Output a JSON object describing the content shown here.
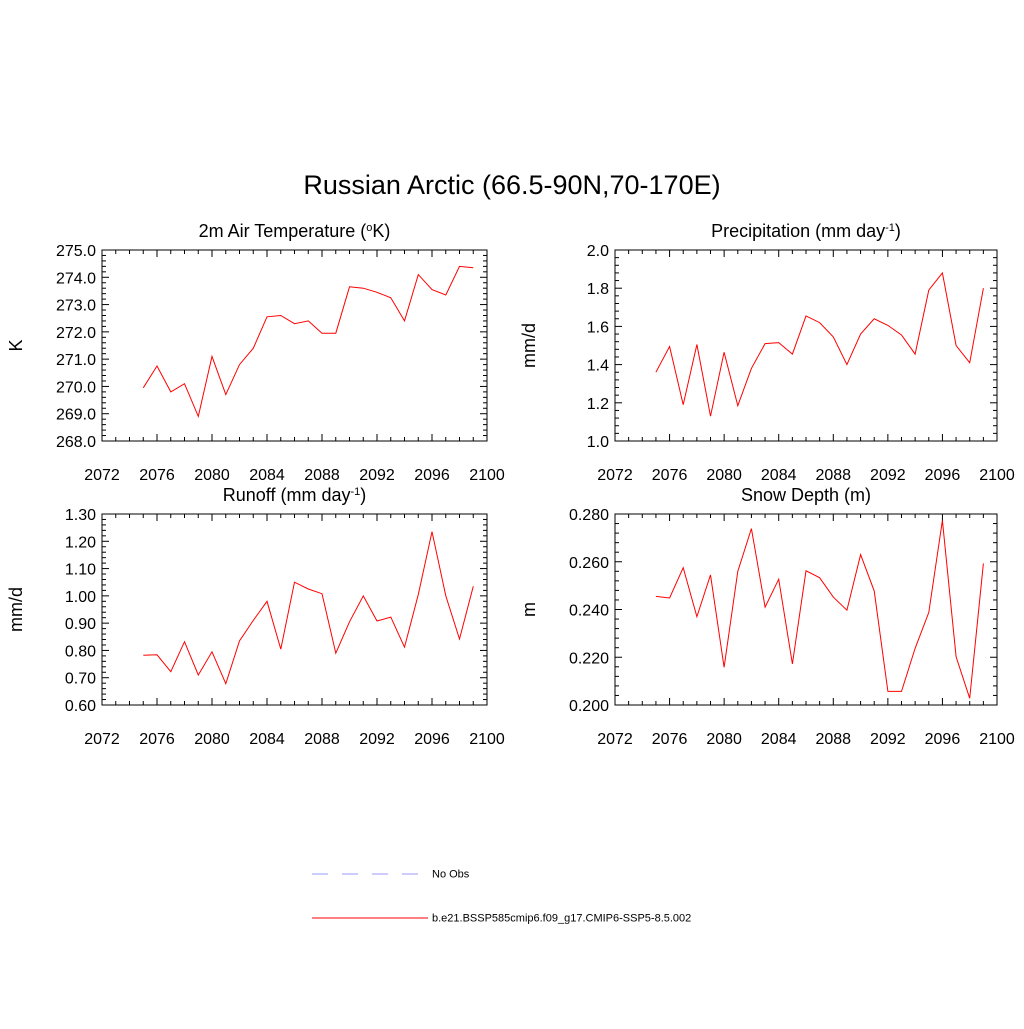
{
  "page": {
    "title": "Russian Arctic (66.5-90N,70-170E)"
  },
  "legend": {
    "items": [
      {
        "label": "No Obs",
        "color": "#9999ff",
        "dash": true
      },
      {
        "label": "b.e21.BSSP585cmip6.f09_g17.CMIP6-SSP5-8.5.002",
        "color": "#ff0000",
        "dash": false
      }
    ]
  },
  "chart_data": [
    {
      "type": "line",
      "title": "2m Air Temperature (°K)",
      "title_main": "2m Air Temperature (",
      "title_sup_prefix": "o",
      "title_after_sup": "K)",
      "ylabel": "K",
      "xlim": [
        2072,
        2100
      ],
      "ylim": [
        268,
        275
      ],
      "xticks": [
        2072,
        2076,
        2080,
        2084,
        2088,
        2092,
        2096,
        2100
      ],
      "yticks": [
        268,
        269,
        270,
        271,
        272,
        273,
        274,
        275
      ],
      "ytick_labels": [
        "268.0",
        "269.0",
        "270.0",
        "271.0",
        "272.0",
        "273.0",
        "274.0",
        "275.0"
      ],
      "grid": false,
      "series": [
        {
          "color": "#ff0000",
          "x": [
            2075,
            2076,
            2077,
            2078,
            2079,
            2080,
            2081,
            2082,
            2083,
            2084,
            2085,
            2086,
            2087,
            2088,
            2089,
            2090,
            2091,
            2092,
            2093,
            2094,
            2095,
            2096,
            2097,
            2098,
            2099
          ],
          "values": [
            269.95,
            270.75,
            269.8,
            270.1,
            268.9,
            271.1,
            269.7,
            270.8,
            271.4,
            272.55,
            272.6,
            272.3,
            272.4,
            271.95,
            271.95,
            273.65,
            273.6,
            273.45,
            273.25,
            272.4,
            274.1,
            273.55,
            273.35,
            274.4,
            274.35
          ]
        }
      ]
    },
    {
      "type": "line",
      "title": "Precipitation (mm day-1)",
      "title_main": "Precipitation (mm day",
      "title_sup_prefix": "-1",
      "title_after_sup": ")",
      "ylabel": "mm/d",
      "xlim": [
        2072,
        2100
      ],
      "ylim": [
        1.0,
        2.0
      ],
      "xticks": [
        2072,
        2076,
        2080,
        2084,
        2088,
        2092,
        2096,
        2100
      ],
      "yticks": [
        1.0,
        1.2,
        1.4,
        1.6,
        1.8,
        2.0
      ],
      "ytick_labels": [
        "1.0",
        "1.2",
        "1.4",
        "1.6",
        "1.8",
        "2.0"
      ],
      "grid": false,
      "series": [
        {
          "color": "#ff0000",
          "x": [
            2075,
            2076,
            2077,
            2078,
            2079,
            2080,
            2081,
            2082,
            2083,
            2084,
            2085,
            2086,
            2087,
            2088,
            2089,
            2090,
            2091,
            2092,
            2093,
            2094,
            2095,
            2096,
            2097,
            2098,
            2099
          ],
          "values": [
            1.36,
            1.495,
            1.19,
            1.505,
            1.13,
            1.465,
            1.185,
            1.38,
            1.51,
            1.515,
            1.455,
            1.655,
            1.62,
            1.545,
            1.4,
            1.56,
            1.64,
            1.605,
            1.555,
            1.455,
            1.79,
            1.88,
            1.5,
            1.41,
            1.8
          ]
        }
      ]
    },
    {
      "type": "line",
      "title": "Runoff (mm day-1)",
      "title_main": "Runoff (mm day",
      "title_sup_prefix": "-1",
      "title_after_sup": ")",
      "ylabel": "mm/d",
      "xlim": [
        2072,
        2100
      ],
      "ylim": [
        0.6,
        1.3
      ],
      "xticks": [
        2072,
        2076,
        2080,
        2084,
        2088,
        2092,
        2096,
        2100
      ],
      "yticks": [
        0.6,
        0.7,
        0.8,
        0.9,
        1.0,
        1.1,
        1.2,
        1.3
      ],
      "ytick_labels": [
        "0.60",
        "0.70",
        "0.80",
        "0.90",
        "1.00",
        "1.10",
        "1.20",
        "1.30"
      ],
      "grid": false,
      "series": [
        {
          "color": "#ff0000",
          "x": [
            2075,
            2076,
            2077,
            2078,
            2079,
            2080,
            2081,
            2082,
            2083,
            2084,
            2085,
            2086,
            2087,
            2088,
            2089,
            2090,
            2091,
            2092,
            2093,
            2094,
            2095,
            2096,
            2097,
            2098,
            2099
          ],
          "values": [
            0.782,
            0.784,
            0.722,
            0.832,
            0.71,
            0.795,
            0.678,
            0.835,
            0.91,
            0.98,
            0.805,
            1.05,
            1.025,
            1.008,
            0.79,
            0.905,
            1.0,
            0.908,
            0.922,
            0.812,
            1.005,
            1.235,
            1.0,
            0.842,
            1.035
          ]
        }
      ]
    },
    {
      "type": "line",
      "title": "Snow Depth (m)",
      "title_main": "Snow Depth (m)",
      "title_sup_prefix": "",
      "title_after_sup": "",
      "ylabel": "m",
      "xlim": [
        2072,
        2100
      ],
      "ylim": [
        0.2,
        0.28
      ],
      "xticks": [
        2072,
        2076,
        2080,
        2084,
        2088,
        2092,
        2096,
        2100
      ],
      "yticks": [
        0.2,
        0.22,
        0.24,
        0.26,
        0.28
      ],
      "ytick_labels": [
        "0.200",
        "0.220",
        "0.240",
        "0.260",
        "0.280"
      ],
      "grid": false,
      "series": [
        {
          "color": "#ff0000",
          "x": [
            2075,
            2076,
            2077,
            2078,
            2079,
            2080,
            2081,
            2082,
            2083,
            2084,
            2085,
            2086,
            2087,
            2088,
            2089,
            2090,
            2091,
            2092,
            2093,
            2094,
            2095,
            2096,
            2097,
            2098,
            2099
          ],
          "values": [
            0.2455,
            0.2448,
            0.2575,
            0.237,
            0.2545,
            0.2158,
            0.256,
            0.2739,
            0.241,
            0.2527,
            0.2172,
            0.2562,
            0.2533,
            0.2452,
            0.2397,
            0.263,
            0.2478,
            0.2057,
            0.2057,
            0.2237,
            0.2388,
            0.2773,
            0.2202,
            0.2028,
            0.2593
          ]
        }
      ]
    }
  ]
}
